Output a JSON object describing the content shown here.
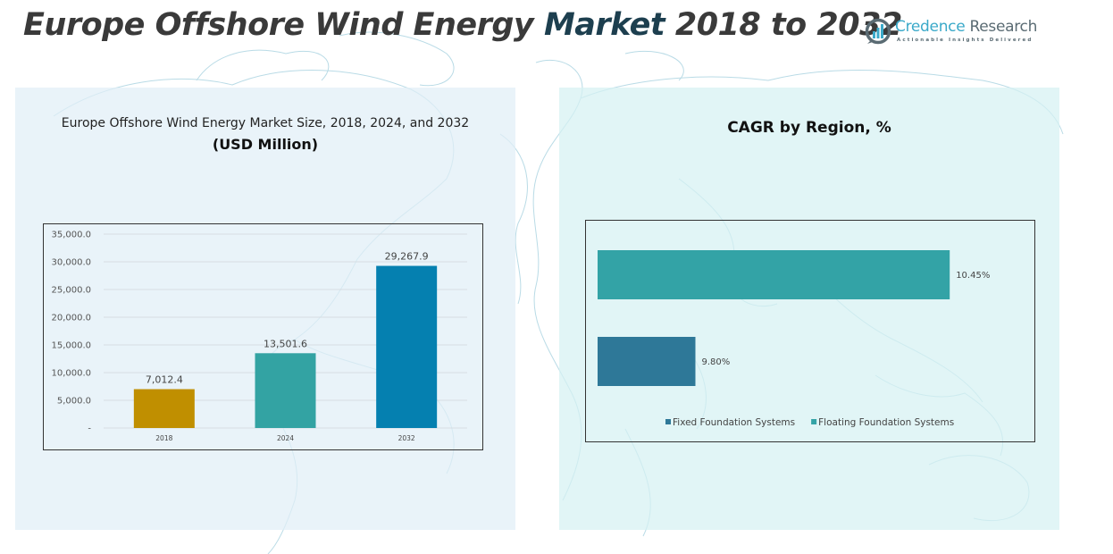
{
  "header": {
    "title_part1": "Europe Offshore Wind Energy ",
    "title_accent": "Market",
    "title_part2": " 2018 to 2032"
  },
  "logo": {
    "name_part1": "Credence",
    "name_part2": " Research",
    "tagline": "Actionable Insights Delivered"
  },
  "colors": {
    "title_text": "#3a3a3a",
    "title_accent": "#1d3f4f",
    "bar_2018": "#c08f00",
    "bar_2024": "#33a3a3",
    "bar_2032": "#0580b0",
    "fixed_foundation": "#2e7898",
    "floating_foundation": "#33a3a6"
  },
  "chart_data": [
    {
      "type": "bar",
      "title": "Europe Offshore Wind Energy Market Size, 2018, 2024, and 2032",
      "subtitle": "(USD Million)",
      "categories": [
        "2018",
        "2024",
        "2032"
      ],
      "values": [
        7012.4,
        13501.6,
        29267.9
      ],
      "data_labels": [
        "7,012.4",
        "13,501.6",
        "29,267.9"
      ],
      "colors": [
        "#c08f00",
        "#33a3a3",
        "#0580b0"
      ],
      "xlabel": "",
      "ylabel": "",
      "ylim": [
        0,
        35000
      ],
      "yticks": [
        0,
        5000,
        10000,
        15000,
        20000,
        25000,
        30000,
        35000
      ],
      "ytick_labels": [
        "-",
        "5,000.0",
        "10,000.0",
        "15,000.0",
        "20,000.0",
        "25,000.0",
        "30,000.0",
        "35,000.0"
      ],
      "grid": true,
      "legend": "none"
    },
    {
      "type": "bar",
      "orientation": "horizontal",
      "title": "CAGR by Region, %",
      "categories": [
        "Floating Foundation Systems",
        "Fixed Foundation Systems"
      ],
      "values": [
        10.45,
        9.8
      ],
      "data_labels": [
        "10.45%",
        "9.80%"
      ],
      "colors": [
        "#33a3a6",
        "#2e7898"
      ],
      "xlim": [
        9.55,
        10.55
      ],
      "grid": false,
      "legend": "bottom",
      "legend_entries": [
        {
          "label": "Fixed Foundation Systems",
          "color": "#2e7898"
        },
        {
          "label": "Floating Foundation Systems",
          "color": "#33a3a6"
        }
      ]
    }
  ]
}
